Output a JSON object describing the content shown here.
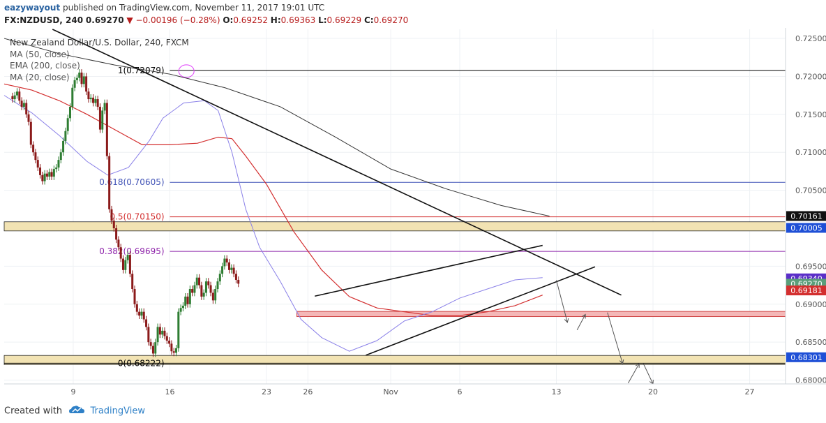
{
  "header": {
    "user": "eazywayout",
    "published": "published on TradingView.com, November 11, 2017 19:01 UTC",
    "symbol": "FX:NZDUSD, 240",
    "last": "0.69270",
    "change_arrow": "▼",
    "change": "−0.00196 (−0.28%)",
    "o_label": "O:",
    "o": "0.69252",
    "h_label": "H:",
    "h": "0.69363",
    "l_label": "L:",
    "l": "0.69229",
    "c_label": "C:",
    "c": "0.69270"
  },
  "legend": {
    "title": "New Zealand Dollar/U.S. Dollar, 240, FXCM",
    "ma50": "MA (50, close)",
    "ema200": "EMA (200, close)",
    "ma20": "MA (20, close)"
  },
  "footer": {
    "created_with": "Created with",
    "brand": "TradingView",
    "logo_icon": "tradingview-cloud-icon"
  },
  "colors": {
    "ma20": "#8a80e8",
    "ma50": "#d32f2f",
    "ema200": "#333333",
    "bull": "#2e7d32",
    "bear": "#8b1a1a",
    "fib_1": "#000000",
    "fib_0618": "#3f51b5",
    "fib_05": "#d32f2f",
    "fib_0382": "#8e24aa",
    "zone_tan": "#f2e3b3",
    "zone_red": "#f4b7b7",
    "axis_text": "#555555"
  },
  "chart_data": {
    "type": "candlestick",
    "title": "New Zealand Dollar/U.S. Dollar, 240, FXCM",
    "ylim": [
      0.6795,
      0.7262
    ],
    "y_ticks": [
      "0.72500",
      "0.72000",
      "0.71500",
      "0.71000",
      "0.70500",
      "0.70000",
      "0.69500",
      "0.69000",
      "0.68500",
      "0.68000"
    ],
    "x_ticks": [
      {
        "label": "9",
        "day": 9
      },
      {
        "label": "16",
        "day": 16
      },
      {
        "label": "23",
        "day": 23
      },
      {
        "label": "26",
        "day": 26
      },
      {
        "label": "Nov",
        "day": 32
      },
      {
        "label": "6",
        "day": 37
      },
      {
        "label": "13",
        "day": 44
      },
      {
        "label": "20",
        "day": 51
      },
      {
        "label": "27",
        "day": 58
      }
    ],
    "xlim": [
      4.0,
      60.6
    ],
    "price_tags": [
      {
        "value": 0.70161,
        "label": "0.70161",
        "bg": "#111111"
      },
      {
        "value": 0.70005,
        "label": "0.70005",
        "bg": "#1e4fd6"
      },
      {
        "value": 0.6934,
        "label": "0.69340",
        "bg": "#5b2fc8"
      },
      {
        "value": 0.6927,
        "label": "0.69270",
        "bg": "#5a9e7a"
      },
      {
        "value": 0.69181,
        "label": "0.69181",
        "bg": "#d32f2f"
      },
      {
        "value": 0.68301,
        "label": "0.68301",
        "bg": "#1e4fd6"
      }
    ],
    "fib_levels": [
      {
        "label": "1(0.72079)",
        "value": 0.72079,
        "color": "#000000"
      },
      {
        "label": "0.618(0.70605)",
        "value": 0.70605,
        "color": "#3f51b5"
      },
      {
        "label": "0.5(0.70150)",
        "value": 0.7015,
        "color": "#d32f2f"
      },
      {
        "label": "0.382(0.69695)",
        "value": 0.69695,
        "color": "#8e24aa"
      },
      {
        "label": "0(0.68222)",
        "value": 0.68222,
        "color": "#000000"
      }
    ],
    "zones": [
      {
        "name": "resistance",
        "from": 0.69965,
        "to": 0.70085,
        "color": "#f2e3b3"
      },
      {
        "name": "support-1",
        "from": 0.68836,
        "to": 0.68905,
        "color": "#f4b7b7"
      },
      {
        "name": "support-2",
        "from": 0.68205,
        "to": 0.68325,
        "color": "#f2e3b3"
      }
    ],
    "trendlines": [
      {
        "x": [
          7.5,
          48.7
        ],
        "y": [
          0.7262,
          0.6912
        ]
      },
      {
        "x": [
          30.2,
          46.8
        ],
        "y": [
          0.68328,
          0.69492
        ]
      },
      {
        "x": [
          26.5,
          43.0
        ],
        "y": [
          0.69106,
          0.69774
        ]
      }
    ],
    "arrows": [
      [
        [
          44.0,
          0.69315
        ],
        [
          44.8,
          0.6876
        ]
      ],
      [
        [
          45.5,
          0.6866
        ],
        [
          46.1,
          0.68865
        ]
      ],
      [
        [
          47.7,
          0.6889
        ],
        [
          48.8,
          0.68218
        ]
      ],
      [
        [
          49.2,
          0.6796
        ],
        [
          50.0,
          0.68218
        ]
      ],
      [
        [
          50.3,
          0.68218
        ],
        [
          51.0,
          0.6795
        ]
      ]
    ],
    "ma20": {
      "name": "MA (20, close)",
      "x": [
        4.0,
        6.0,
        8.0,
        10.0,
        11.5,
        13.0,
        14.5,
        15.5,
        17.0,
        18.5,
        19.5,
        20.5,
        21.5,
        22.5,
        24.0,
        25.5,
        27.0,
        29.0,
        31.0,
        33.0,
        35.0,
        37.0,
        39.0,
        41.0,
        43.0
      ],
      "y": [
        0.7175,
        0.7152,
        0.7122,
        0.7088,
        0.707,
        0.708,
        0.7115,
        0.7145,
        0.7165,
        0.7168,
        0.7155,
        0.71,
        0.7025,
        0.6975,
        0.693,
        0.688,
        0.6856,
        0.6838,
        0.6852,
        0.6878,
        0.689,
        0.6908,
        0.692,
        0.6932,
        0.6935
      ]
    },
    "ma50": {
      "name": "MA (50, close)",
      "x": [
        4.0,
        6.0,
        8.0,
        10.0,
        12.0,
        14.0,
        16.0,
        18.0,
        19.5,
        20.5,
        21.5,
        23.0,
        25.0,
        27.0,
        29.0,
        31.0,
        33.0,
        35.0,
        37.0,
        39.0,
        41.0,
        43.0
      ],
      "y": [
        0.719,
        0.7182,
        0.7168,
        0.715,
        0.713,
        0.711,
        0.711,
        0.7112,
        0.712,
        0.7118,
        0.7095,
        0.7058,
        0.6995,
        0.6945,
        0.691,
        0.6895,
        0.689,
        0.6885,
        0.6885,
        0.689,
        0.6898,
        0.6912
      ]
    },
    "ema200": {
      "name": "EMA (200, close)",
      "x": [
        4.0,
        8.0,
        12.0,
        16.0,
        20.0,
        24.0,
        28.0,
        32.0,
        36.0,
        40.0,
        43.5
      ],
      "y": [
        0.725,
        0.723,
        0.7215,
        0.7203,
        0.7185,
        0.716,
        0.712,
        0.7078,
        0.7052,
        0.703,
        0.7016
      ]
    },
    "candles_start_day": 4.6,
    "candles_step_day": 0.167,
    "candles_closes": [
      0.717,
      0.7175,
      0.718,
      0.7168,
      0.716,
      0.7165,
      0.715,
      0.714,
      0.711,
      0.71,
      0.709,
      0.708,
      0.707,
      0.7062,
      0.7072,
      0.7068,
      0.7074,
      0.7068,
      0.7078,
      0.708,
      0.709,
      0.71,
      0.7115,
      0.7128,
      0.7145,
      0.716,
      0.7185,
      0.7195,
      0.7198,
      0.7205,
      0.719,
      0.72,
      0.718,
      0.717,
      0.7172,
      0.7165,
      0.717,
      0.716,
      0.713,
      0.7155,
      0.7165,
      0.7095,
      0.7025,
      0.701,
      0.7,
      0.6985,
      0.6975,
      0.696,
      0.6945,
      0.6958,
      0.6965,
      0.694,
      0.692,
      0.69,
      0.689,
      0.6885,
      0.689,
      0.688,
      0.687,
      0.685,
      0.6845,
      0.6835,
      0.685,
      0.687,
      0.686,
      0.6865,
      0.6858,
      0.6852,
      0.6848,
      0.6838,
      0.6836,
      0.6842,
      0.689,
      0.6895,
      0.6898,
      0.691,
      0.69,
      0.692,
      0.6915,
      0.6925,
      0.6935,
      0.6925,
      0.691,
      0.6915,
      0.693,
      0.6925,
      0.6915,
      0.6905,
      0.692,
      0.693,
      0.694,
      0.695,
      0.696,
      0.6955,
      0.6945,
      0.6948,
      0.694,
      0.6932,
      0.6927
    ]
  }
}
